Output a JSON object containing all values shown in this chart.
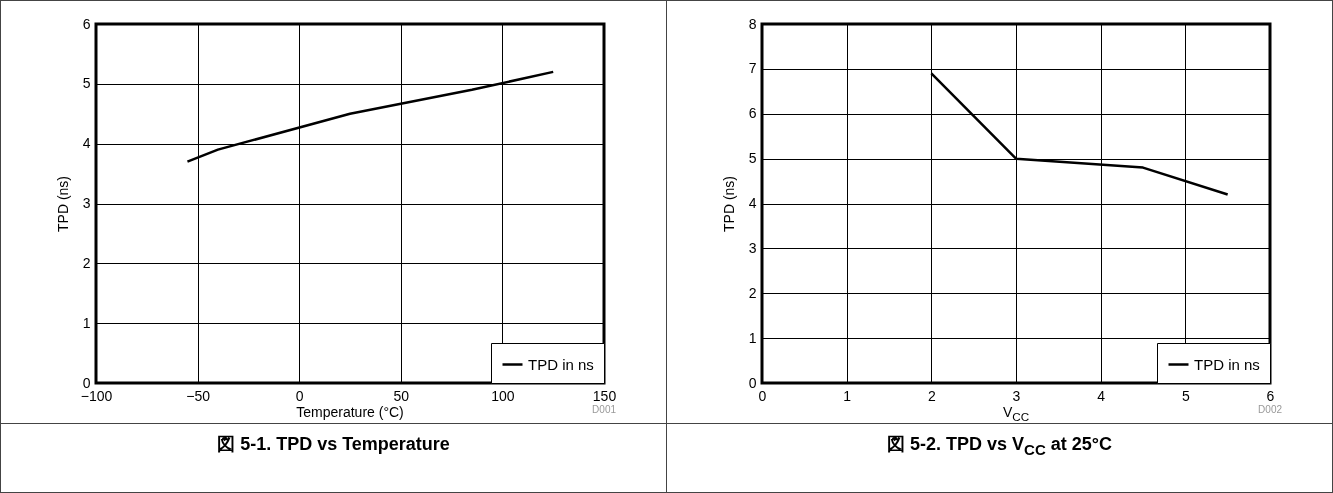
{
  "chart_data": [
    {
      "type": "line",
      "title": "図 5-1. TPD vs Temperature",
      "xlabel": "Temperature (°C)",
      "ylabel": "TPD (ns)",
      "x": [
        -55,
        -40,
        25,
        85,
        125
      ],
      "series": [
        {
          "name": "TPD in ns",
          "color": "#000000",
          "values": [
            3.7,
            3.9,
            4.5,
            4.9,
            5.2
          ]
        }
      ],
      "xlim": [
        -100,
        150
      ],
      "xticks": [
        -100,
        -50,
        0,
        50,
        100,
        150
      ],
      "ylim": [
        0,
        6
      ],
      "yticks": [
        0,
        1,
        2,
        3,
        4,
        5,
        6
      ],
      "grid": true,
      "legend": "bottom right",
      "annotations": [
        "D001"
      ]
    },
    {
      "type": "line",
      "title": "図 5-2. TPD vs V$_{CC}$ at 25°C",
      "xlabel": "V$_{CC}$",
      "ylabel": "TPD (ns)",
      "x": [
        2,
        3,
        4.5,
        5.5
      ],
      "series": [
        {
          "name": "TPD in ns",
          "color": "#000000",
          "values": [
            6.9,
            5.0,
            4.8,
            4.2
          ]
        }
      ],
      "xlim": [
        0,
        6
      ],
      "xticks": [
        0,
        1,
        2,
        3,
        4,
        5,
        6
      ],
      "ylim": [
        0,
        8
      ],
      "yticks": [
        0,
        1,
        2,
        3,
        4,
        5,
        6,
        7,
        8
      ],
      "grid": true,
      "legend": "bottom right",
      "annotations": [
        "D002"
      ]
    }
  ]
}
